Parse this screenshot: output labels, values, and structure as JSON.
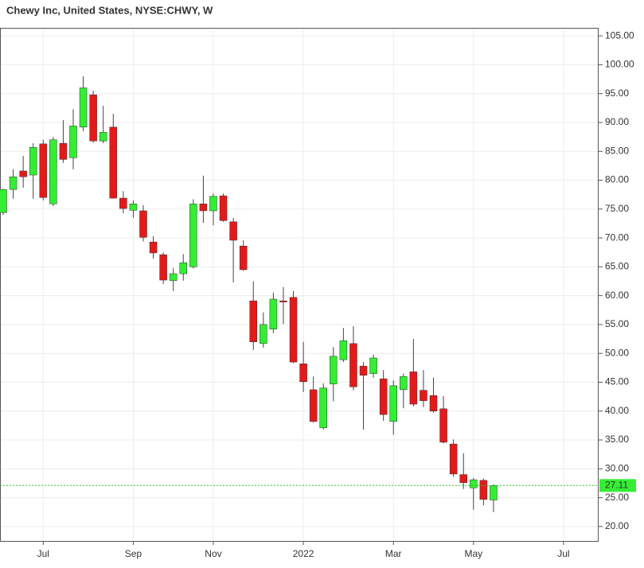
{
  "chart_data": {
    "type": "candlestick",
    "title": "Chewy Inc, United States, NYSE:CHWY, W",
    "categories": [
      null,
      null,
      null,
      null,
      "Jul",
      null,
      null,
      null,
      null,
      null,
      null,
      null,
      null,
      "Sep",
      null,
      null,
      null,
      null,
      null,
      null,
      null,
      "Nov",
      null,
      null,
      null,
      null,
      null,
      null,
      null,
      null,
      "2022",
      null,
      null,
      null,
      null,
      null,
      null,
      null,
      null,
      "Mar",
      null,
      null,
      null,
      null,
      null,
      null,
      null,
      "May",
      null,
      null,
      null,
      null,
      null,
      null,
      null,
      null,
      "Jul",
      null
    ],
    "open": [
      74.4,
      78.4,
      81.6,
      80.9,
      86.3,
      75.9,
      86.4,
      83.9,
      89.2,
      94.8,
      86.8,
      89.2,
      76.9,
      74.8,
      74.7,
      69.3,
      67.1,
      62.6,
      63.8,
      65.0,
      75.9,
      74.7,
      77.3,
      72.8,
      68.6,
      59.1,
      51.7,
      54.2,
      59.1,
      59.7,
      48.2,
      43.7,
      37.1,
      44.7,
      48.9,
      51.7,
      47.8,
      46.5,
      45.6,
      38.2,
      43.7,
      46.8,
      43.6,
      42.7,
      40.4,
      34.3,
      29.0,
      26.7,
      28.0,
      24.6,
      null,
      null,
      null,
      null,
      null,
      null,
      null,
      null
    ],
    "high": [
      78.5,
      81.9,
      84.2,
      86.4,
      87.0,
      87.5,
      90.4,
      92.3,
      98.0,
      95.5,
      92.9,
      91.5,
      78.1,
      76.5,
      75.7,
      70.3,
      67.5,
      64.8,
      67.2,
      76.7,
      80.8,
      77.7,
      77.7,
      73.5,
      69.6,
      62.5,
      57.1,
      60.5,
      61.5,
      60.8,
      52.0,
      46.0,
      44.8,
      51.1,
      54.4,
      54.7,
      48.5,
      49.8,
      47.1,
      45.3,
      46.5,
      52.5,
      47.1,
      45.8,
      42.6,
      35.1,
      32.7,
      28.4,
      28.3,
      27.3,
      null,
      null,
      null,
      null,
      null,
      null,
      null,
      null
    ],
    "low": [
      74.0,
      76.8,
      78.7,
      76.8,
      76.5,
      75.5,
      83.0,
      81.9,
      88.5,
      86.5,
      86.4,
      76.8,
      74.3,
      73.5,
      69.4,
      66.4,
      62.0,
      60.8,
      62.6,
      64.7,
      72.6,
      72.2,
      72.8,
      62.3,
      64.3,
      50.6,
      51.0,
      53.5,
      55.1,
      48.3,
      43.3,
      38.0,
      36.8,
      41.7,
      48.5,
      43.6,
      36.8,
      45.8,
      38.3,
      35.9,
      40.5,
      40.8,
      40.7,
      39.7,
      34.4,
      28.6,
      26.5,
      22.9,
      23.7,
      22.5,
      null,
      null,
      null,
      null,
      null,
      null,
      null,
      null
    ],
    "close": [
      78.4,
      80.6,
      80.6,
      85.7,
      77.0,
      87.0,
      83.6,
      89.4,
      96.0,
      86.8,
      88.3,
      76.9,
      75.1,
      75.9,
      70.1,
      67.4,
      62.7,
      63.8,
      65.7,
      75.9,
      74.7,
      77.2,
      73.0,
      69.6,
      64.5,
      52.0,
      55.0,
      59.4,
      58.9,
      48.5,
      45.1,
      38.2,
      44.0,
      49.5,
      52.2,
      44.2,
      46.2,
      49.2,
      39.4,
      44.4,
      46.0,
      41.2,
      41.8,
      40.0,
      34.6,
      29.1,
      27.6,
      28.1,
      24.7,
      27.11,
      null,
      null,
      null,
      null,
      null,
      null,
      null,
      null
    ],
    "up_color": "#33ee33",
    "down_color": "#e41a1a",
    "ylim": [
      17.5,
      106.4
    ],
    "yticks": [
      {
        "value": 20,
        "label": "20.00"
      },
      {
        "value": 25,
        "label": "25.00"
      },
      {
        "value": 30,
        "label": "30.00"
      },
      {
        "value": 35,
        "label": "35.00"
      },
      {
        "value": 40,
        "label": "40.00"
      },
      {
        "value": 45,
        "label": "45.00"
      },
      {
        "value": 50,
        "label": "50.00"
      },
      {
        "value": 55,
        "label": "55.00"
      },
      {
        "value": 60,
        "label": "60.00"
      },
      {
        "value": 65,
        "label": "65.00"
      },
      {
        "value": 70,
        "label": "70.00"
      },
      {
        "value": 75,
        "label": "75.00"
      },
      {
        "value": 80,
        "label": "80.00"
      },
      {
        "value": 85,
        "label": "85.00"
      },
      {
        "value": 90,
        "label": "90.00"
      },
      {
        "value": 95,
        "label": "95.00"
      },
      {
        "value": 100,
        "label": "100.00"
      },
      {
        "value": 105,
        "label": "105.00"
      }
    ],
    "last_price": 27.11,
    "grid": true
  }
}
